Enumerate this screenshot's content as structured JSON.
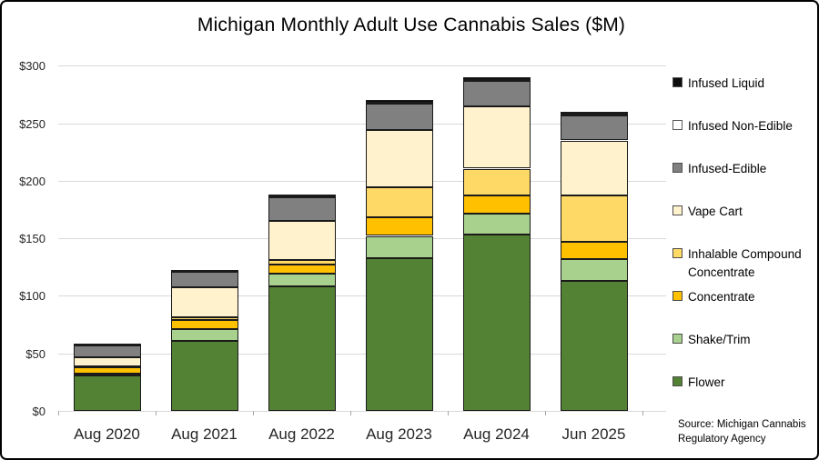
{
  "window": {
    "background_color": "#FFFFFF",
    "border_color": "#000000"
  },
  "chart_data": {
    "type": "bar",
    "stacked": true,
    "title": "Michigan Monthly Adult Use Cannabis Sales ($M)",
    "unit": "USD millions",
    "categories": [
      "Aug 2020",
      "Aug 2021",
      "Aug 2022",
      "Aug 2023",
      "Aug 2024",
      "Jun 2025"
    ],
    "series": [
      {
        "name": "Flower",
        "color": "#548235",
        "values": [
          30.5,
          60.5,
          108,
          133,
          153,
          113
        ]
      },
      {
        "name": "Shake/Trim",
        "color": "#A9D18E",
        "values": [
          2,
          10.5,
          11,
          19,
          18,
          19
        ]
      },
      {
        "name": "Concentrate",
        "color": "#FFC000",
        "values": [
          5,
          7.5,
          8,
          16,
          16,
          14.5
        ]
      },
      {
        "name": "Inhalable Compound Concentrate",
        "color": "#FFD966",
        "values": [
          1,
          2.5,
          4,
          26,
          23.5,
          41
        ]
      },
      {
        "name": "Vape Cart",
        "color": "#FFF2CC",
        "values": [
          8,
          26.5,
          34,
          50,
          54,
          47.5
        ]
      },
      {
        "name": "Infused-Edible",
        "color": "#808080",
        "values": [
          10.5,
          13.5,
          21,
          23,
          22,
          22
        ]
      },
      {
        "name": "Infused Non-Edible",
        "color": "#FFFFFF",
        "values": [
          0.4,
          0.5,
          0.7,
          1,
          1.2,
          1
        ]
      },
      {
        "name": "Infused Liquid",
        "color": "#0D0D0D",
        "values": [
          0.8,
          1,
          1.3,
          2,
          2.3,
          2
        ]
      }
    ],
    "approx_totals": [
      58.2,
      122.5,
      188,
      270,
      290,
      260
    ],
    "ylim": [
      0,
      300
    ],
    "y_ticks": [
      0,
      50,
      100,
      150,
      200,
      250,
      300
    ],
    "y_tick_labels": [
      "$0",
      "$50",
      "$100",
      "$150",
      "$200",
      "$250",
      "$300"
    ],
    "grid": true,
    "legend_position": "right",
    "legend_order_top_to_bottom": [
      "Infused Liquid",
      "Infused Non-Edible",
      "Infused-Edible",
      "Vape Cart",
      "Inhalable Compound Concentrate",
      "Concentrate",
      "Shake/Trim",
      "Flower"
    ]
  },
  "source": {
    "text": "Source: Michigan Cannabis Regulatory Agency"
  }
}
